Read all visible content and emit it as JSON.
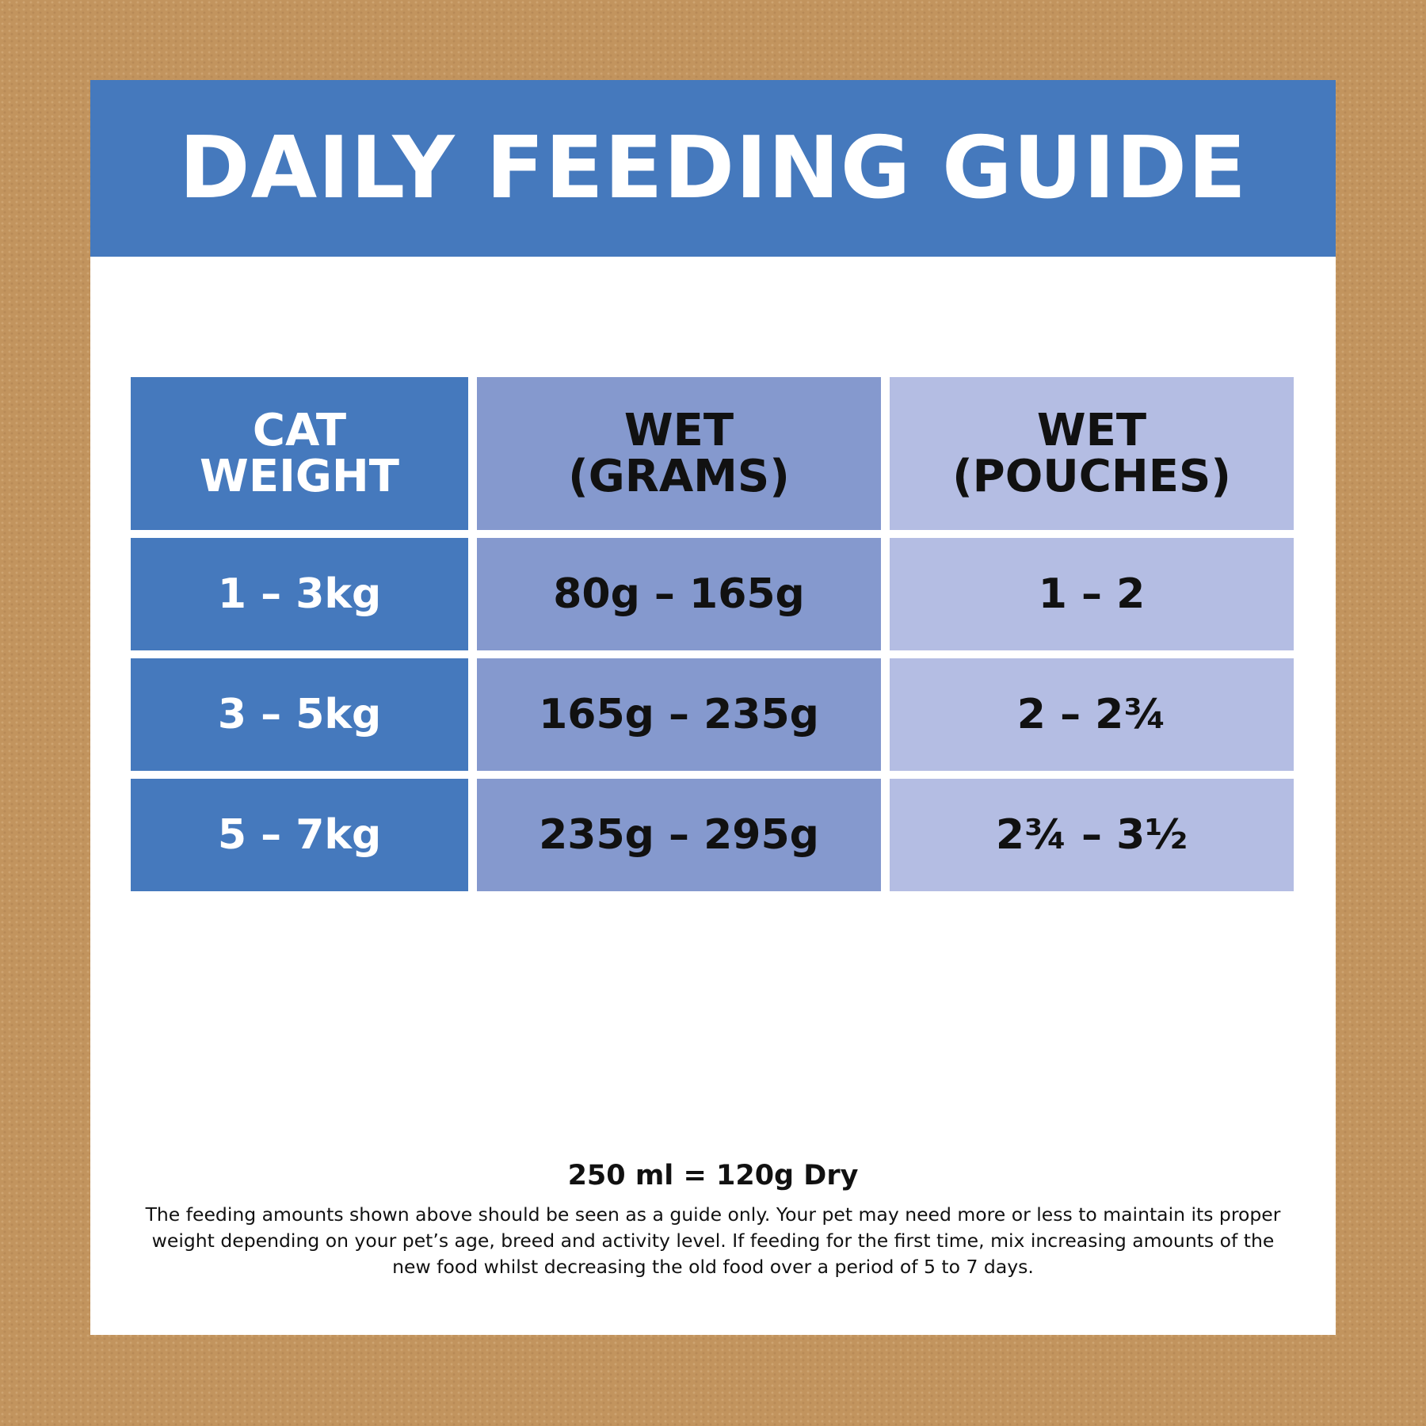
{
  "title": "DAILY FEEDING GUIDE",
  "table": {
    "headers": [
      [
        "CAT",
        "WEIGHT"
      ],
      [
        "WET",
        "(GRAMS)"
      ],
      [
        "WET",
        "(POUCHES)"
      ]
    ],
    "rows": [
      [
        "1 – 3kg",
        "80g – 165g",
        "1 – 2"
      ],
      [
        "3 – 5kg",
        "165g – 235g",
        "2 – 2¾"
      ],
      [
        "5 – 7kg",
        "235g – 295g",
        "2¾ – 3½"
      ]
    ]
  },
  "footer": {
    "conversion": "250 ml = 120g Dry",
    "disclaimer": "The feeding amounts shown above should be seen as a guide only. Your pet may need more or less to maintain its proper weight depending on your pet’s age, breed and activity level. If feeding for the first time, mix increasing amounts of the new food whilst decreasing the old food over a period of 5 to 7 days."
  },
  "colors": {
    "banner": "#4579bd",
    "column_weight": "#4579bd",
    "column_grams": "#8599ce",
    "column_pouches": "#b4bde3",
    "background": "#c2945e"
  }
}
